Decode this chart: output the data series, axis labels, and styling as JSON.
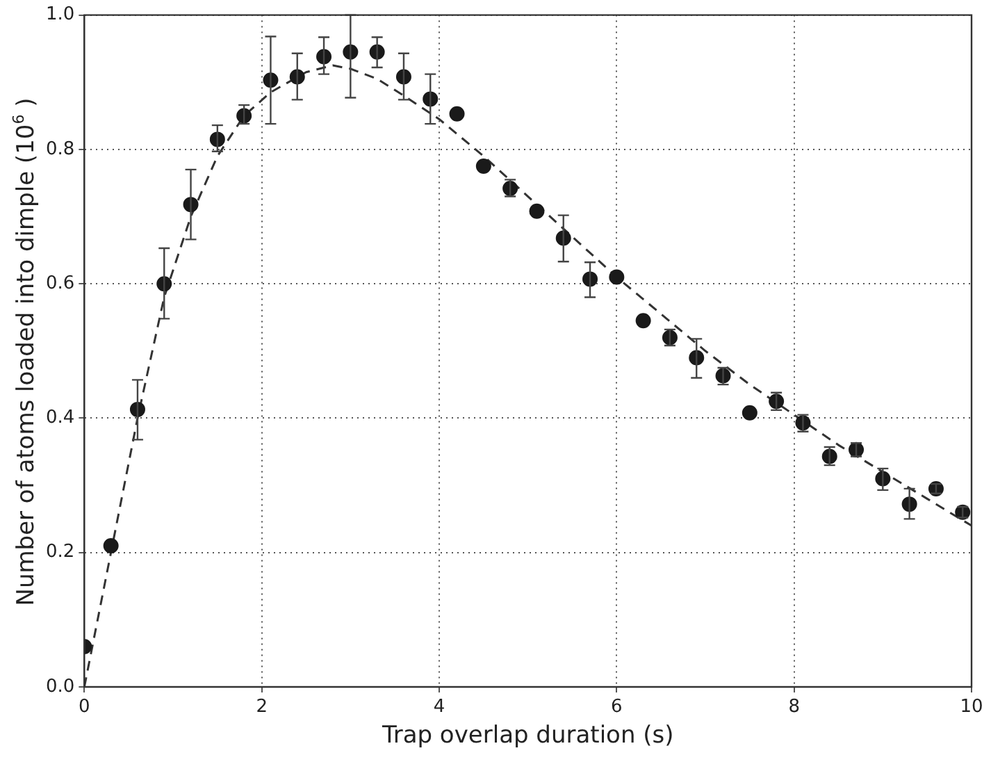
{
  "chart_data": {
    "type": "scatter",
    "xlabel": "Trap overlap duration (s)",
    "ylabel": "Number of atoms loaded into dimple (10$^{6}$ )",
    "xlim": [
      0,
      10
    ],
    "xticks": [
      0,
      2,
      4,
      6,
      8,
      10
    ],
    "ylim": [
      0,
      1
    ],
    "yticks": [
      {
        "value": 0,
        "label": "0.0"
      },
      {
        "value": 0.2,
        "label": "0.2"
      },
      {
        "value": 0.4,
        "label": "0.4"
      },
      {
        "value": 0.6,
        "label": "0.6"
      },
      {
        "value": 0.8,
        "label": "0.8"
      },
      {
        "value": 1,
        "label": "1.0"
      }
    ],
    "grid": true,
    "legend": false,
    "series": [
      {
        "color": "#1a1a1a",
        "marker": "circle",
        "x": [
          0,
          0.3,
          0.6,
          0.9,
          1.2,
          1.5,
          1.8,
          2.1,
          2.4,
          2.7,
          3.0,
          3.3,
          3.6,
          3.9,
          4.2,
          4.5,
          4.8,
          5.1,
          5.4,
          5.7,
          6.0,
          6.3,
          6.6,
          6.9,
          7.2,
          7.5,
          7.8,
          8.1,
          8.4,
          8.7,
          9.0,
          9.3,
          9.6,
          9.9
        ],
        "values": [
          0.06,
          0.21,
          0.413,
          0.6,
          0.718,
          0.815,
          0.85,
          0.903,
          0.908,
          0.938,
          0.945,
          0.945,
          0.908,
          0.875,
          0.853,
          0.775,
          0.742,
          0.708,
          0.668,
          0.607,
          0.61,
          0.545,
          0.52,
          0.49,
          0.463,
          0.408,
          0.425,
          0.393,
          0.343,
          0.353,
          0.31,
          0.272,
          0.295,
          0.26
        ],
        "errors": [
          null,
          null,
          [
            0.368,
            0.457
          ],
          [
            0.548,
            0.653
          ],
          [
            0.666,
            0.77
          ],
          [
            0.797,
            0.836
          ],
          [
            0.838,
            0.866
          ],
          [
            0.838,
            0.968
          ],
          [
            0.874,
            0.943
          ],
          [
            0.912,
            0.967
          ],
          [
            0.877,
            1.0
          ],
          [
            0.922,
            0.967
          ],
          [
            0.874,
            0.943
          ],
          [
            0.838,
            0.912
          ],
          null,
          null,
          [
            0.73,
            0.755
          ],
          null,
          [
            0.633,
            0.702
          ],
          [
            0.58,
            0.632
          ],
          null,
          null,
          [
            0.508,
            0.532
          ],
          [
            0.46,
            0.518
          ],
          [
            0.45,
            0.475
          ],
          null,
          [
            0.412,
            0.438
          ],
          [
            0.38,
            0.405
          ],
          [
            0.33,
            0.357
          ],
          [
            0.343,
            0.363
          ],
          [
            0.293,
            0.325
          ],
          [
            0.25,
            0.295
          ],
          [
            0.288,
            0.302
          ],
          [
            0.252,
            0.268
          ]
        ]
      },
      {
        "type": "line",
        "color": "#333333",
        "marker": "none",
        "line_style": "dashed",
        "x": [
          0,
          0.3,
          0.6,
          0.9,
          1.2,
          1.5,
          1.8,
          2.1,
          2.5,
          2.8,
          3.0,
          3.3,
          3.6,
          4.0,
          4.5,
          5.0,
          5.5,
          6.0,
          6.5,
          7.0,
          7.5,
          8.0,
          8.5,
          9.0,
          9.5,
          10
        ],
        "values": [
          0.0,
          0.2,
          0.4,
          0.58,
          0.7,
          0.79,
          0.85,
          0.885,
          0.915,
          0.925,
          0.92,
          0.905,
          0.88,
          0.845,
          0.79,
          0.73,
          0.67,
          0.61,
          0.555,
          0.5,
          0.45,
          0.405,
          0.36,
          0.32,
          0.28,
          0.24
        ]
      }
    ]
  }
}
